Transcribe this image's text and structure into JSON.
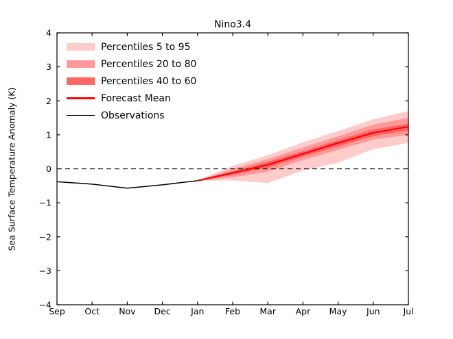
{
  "figure": {
    "title": "Nino3.4",
    "ylabel": "Sea Surface Temperature Anomaly (K)",
    "background_color": "#ffffff",
    "axis_color": "#000000"
  },
  "legend": {
    "position": "upper left",
    "items": [
      {
        "type": "patch",
        "color": "#ffcccc",
        "label": "Percentiles 5 to 95"
      },
      {
        "type": "patch",
        "color": "#ff9999",
        "label": "Percentiles 20 to 80"
      },
      {
        "type": "patch",
        "color": "#ff6666",
        "label": "Percentiles 40 to 60"
      },
      {
        "type": "line",
        "color": "#ff0000",
        "label": "Forecast Mean"
      },
      {
        "type": "line",
        "color": "#000000",
        "label": "Observations"
      }
    ]
  },
  "chart_data": {
    "type": "line",
    "title": "Nino3.4",
    "xlabel": "",
    "ylabel": "Sea Surface Temperature Anomaly (K)",
    "x_tick_labels": [
      "Sep",
      "Oct",
      "Nov",
      "Dec",
      "Jan",
      "Feb",
      "Mar",
      "Apr",
      "May",
      "Jun",
      "Jul"
    ],
    "y_ticks": [
      4,
      3,
      2,
      1,
      0,
      -1,
      -2,
      -3,
      -4
    ],
    "y_tick_labels": [
      "4",
      "3",
      "2",
      "1",
      "0",
      "−1",
      "−2",
      "−3",
      "−4"
    ],
    "ylim": [
      -4,
      4
    ],
    "grid": false,
    "legend_position": "upper left",
    "zero_line": {
      "y": 0,
      "style": "dashed",
      "color": "#000000"
    },
    "series": [
      {
        "name": "Percentiles 5 to 95",
        "type": "band",
        "color": "#ffcccc",
        "x": [
          "Jan",
          "Feb",
          "Mar",
          "Apr",
          "May",
          "Jun",
          "Jul"
        ],
        "lower": [
          -0.35,
          -0.34,
          -0.42,
          -0.05,
          0.18,
          0.58,
          0.76
        ],
        "upper": [
          -0.35,
          0.09,
          0.4,
          0.78,
          1.11,
          1.46,
          1.7
        ]
      },
      {
        "name": "Percentiles 20 to 80",
        "type": "band",
        "color": "#ff9999",
        "x": [
          "Jan",
          "Feb",
          "Mar",
          "Apr",
          "May",
          "Jun",
          "Jul"
        ],
        "lower": [
          -0.35,
          -0.25,
          -0.08,
          0.26,
          0.56,
          0.86,
          1.0
        ],
        "upper": [
          -0.35,
          0.0,
          0.29,
          0.63,
          0.96,
          1.3,
          1.5
        ]
      },
      {
        "name": "Percentiles 40 to 60",
        "type": "band",
        "color": "#ff6666",
        "x": [
          "Jan",
          "Feb",
          "Mar",
          "Apr",
          "May",
          "Jun",
          "Jul"
        ],
        "lower": [
          -0.35,
          -0.18,
          0.03,
          0.36,
          0.66,
          0.96,
          1.13
        ],
        "upper": [
          -0.35,
          -0.07,
          0.21,
          0.52,
          0.85,
          1.16,
          1.33
        ]
      },
      {
        "name": "Observations",
        "type": "line",
        "color": "#000000",
        "width": 1.5,
        "x": [
          "Sep",
          "Oct",
          "Nov",
          "Dec",
          "Jan"
        ],
        "values": [
          -0.38,
          -0.45,
          -0.57,
          -0.47,
          -0.35
        ]
      },
      {
        "name": "Forecast Mean",
        "type": "line",
        "color": "#ff0000",
        "width": 2.2,
        "x": [
          "Jan",
          "Feb",
          "Mar",
          "Apr",
          "May",
          "Jun",
          "Jul"
        ],
        "values": [
          -0.35,
          -0.12,
          0.12,
          0.44,
          0.76,
          1.06,
          1.24
        ]
      }
    ]
  }
}
